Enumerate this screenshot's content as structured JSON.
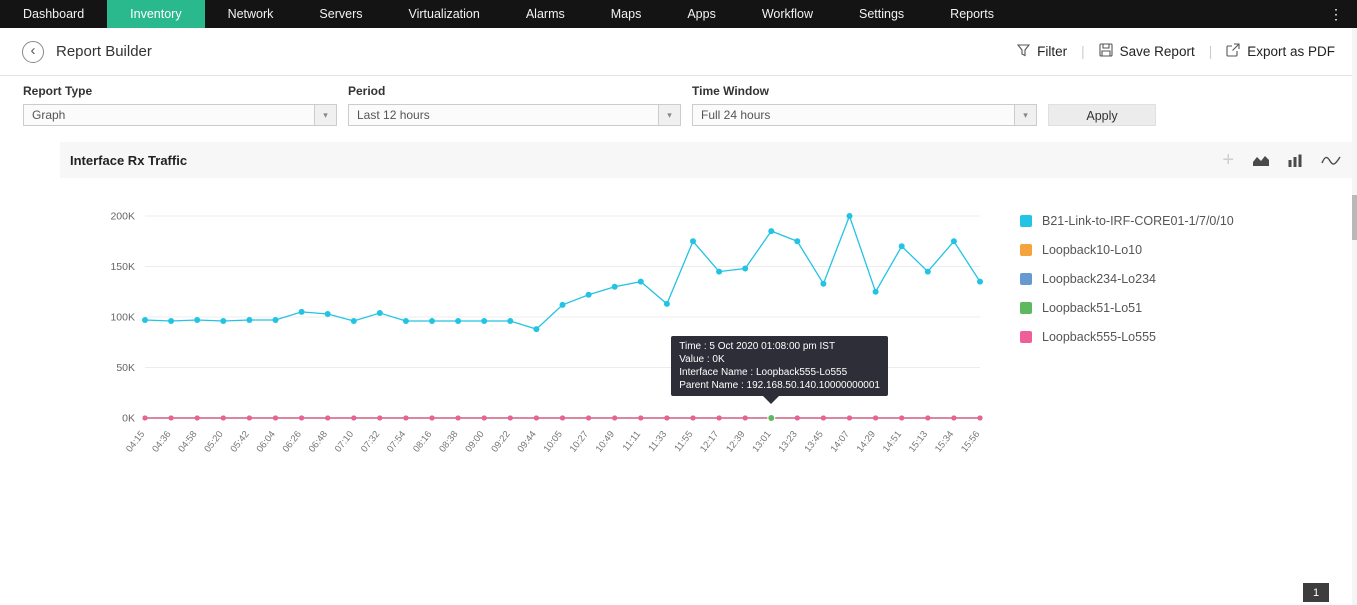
{
  "nav": {
    "items": [
      "Dashboard",
      "Inventory",
      "Network",
      "Servers",
      "Virtualization",
      "Alarms",
      "Maps",
      "Apps",
      "Workflow",
      "Settings",
      "Reports"
    ],
    "active_item": "Inventory"
  },
  "icons": {
    "kebab": "⋮",
    "plus": "+",
    "dropdown_arrow": "▾",
    "back": "‹",
    "separator": "|"
  },
  "toolbar": {
    "title": "Report Builder",
    "filter_label": "Filter",
    "save_label": "Save Report",
    "export_label": "Export as PDF"
  },
  "filters": {
    "report_type_label": "Report Type",
    "report_type_value": "Graph",
    "period_label": "Period",
    "period_value": "Last 12 hours",
    "time_window_label": "Time Window",
    "time_window_value": "Full 24 hours",
    "apply_label": "Apply"
  },
  "panel": {
    "title": "Interface Rx Traffic"
  },
  "chart_data": {
    "type": "line",
    "title": "Interface Rx Traffic",
    "xlabel": "",
    "ylabel": "",
    "unit": "K",
    "ylim": [
      0,
      200
    ],
    "grid": true,
    "legend_position": "right",
    "yticks": [
      0,
      50,
      100,
      150,
      200
    ],
    "ytick_labels": [
      "0K",
      "50K",
      "100K",
      "150K",
      "200K"
    ],
    "x": [
      "04:15",
      "04:36",
      "04:58",
      "05:20",
      "05:42",
      "06:04",
      "06:26",
      "06:48",
      "07:10",
      "07:32",
      "07:54",
      "08:16",
      "08:38",
      "09:00",
      "09:22",
      "09:44",
      "10:05",
      "10:27",
      "10:49",
      "11:11",
      "11:33",
      "11:55",
      "12:17",
      "12:39",
      "13:01",
      "13:23",
      "13:45",
      "14:07",
      "14:29",
      "14:51",
      "15:13",
      "15:34",
      "15:56"
    ],
    "series": [
      {
        "name": "B21-Link-to-IRF-CORE01-1/7/0/10",
        "color": "#23c3e3",
        "values": [
          97,
          96,
          97,
          96,
          97,
          97,
          105,
          103,
          96,
          104,
          96,
          96,
          96,
          96,
          96,
          88,
          112,
          122,
          130,
          135,
          113,
          175,
          145,
          148,
          185,
          175,
          133,
          200,
          125,
          170,
          145,
          175,
          135
        ]
      },
      {
        "name": "Loopback10-Lo10",
        "color": "#f5a33c",
        "values": [
          0,
          0,
          0,
          0,
          0,
          0,
          0,
          0,
          0,
          0,
          0,
          0,
          0,
          0,
          0,
          0,
          0,
          0,
          0,
          0,
          0,
          0,
          0,
          0,
          0,
          0,
          0,
          0,
          0,
          0,
          0,
          0,
          0
        ]
      },
      {
        "name": "Loopback234-Lo234",
        "color": "#6699cf",
        "values": [
          0,
          0,
          0,
          0,
          0,
          0,
          0,
          0,
          0,
          0,
          0,
          0,
          0,
          0,
          0,
          0,
          0,
          0,
          0,
          0,
          0,
          0,
          0,
          0,
          0,
          0,
          0,
          0,
          0,
          0,
          0,
          0,
          0
        ]
      },
      {
        "name": "Loopback51-Lo51",
        "color": "#5eb95e",
        "values": [
          0,
          0,
          0,
          0,
          0,
          0,
          0,
          0,
          0,
          0,
          0,
          0,
          0,
          0,
          0,
          0,
          0,
          0,
          0,
          0,
          0,
          0,
          0,
          0,
          0,
          0,
          0,
          0,
          0,
          0,
          0,
          0,
          0
        ]
      },
      {
        "name": "Loopback555-Lo555",
        "color": "#ee5f9a",
        "values": [
          0,
          0,
          0,
          0,
          0,
          0,
          0,
          0,
          0,
          0,
          0,
          0,
          0,
          0,
          0,
          0,
          0,
          0,
          0,
          0,
          0,
          0,
          0,
          0,
          0,
          0,
          0,
          0,
          0,
          0,
          0,
          0,
          0
        ]
      }
    ]
  },
  "tooltip": {
    "lines": [
      "Time : 5 Oct 2020 01:08:00 pm IST",
      "Value : 0K",
      "Interface Name : Loopback555-Lo555",
      "Parent Name : 192.168.50.140.10000000001"
    ],
    "point_index": 24,
    "highlight_color": "#5eb95e"
  },
  "pager": {
    "page": "1"
  }
}
